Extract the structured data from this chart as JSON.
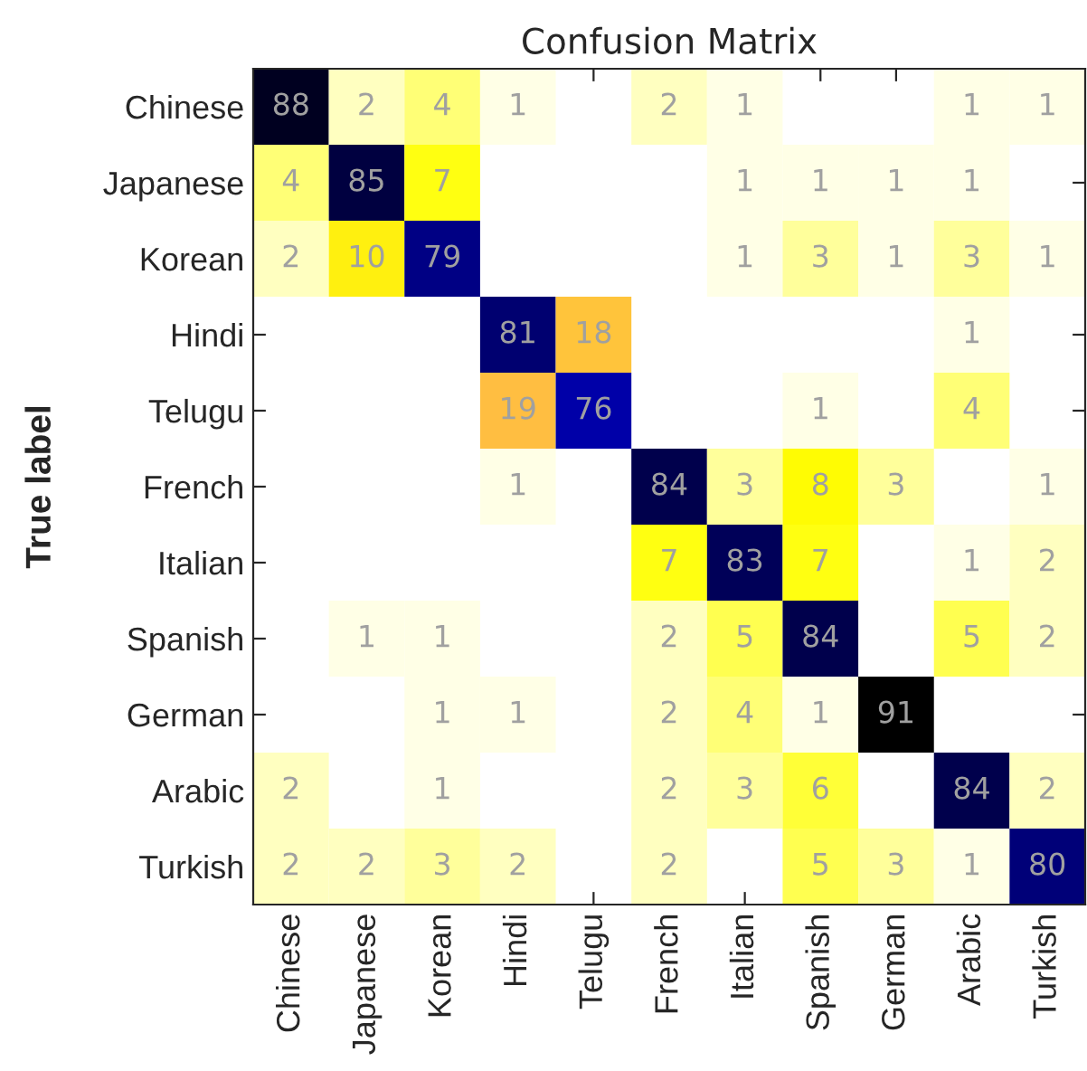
{
  "chart_data": {
    "type": "heatmap",
    "title": "Confusion Matrix",
    "ylabel": "True label",
    "data_labels": true,
    "categories": [
      "Chinese",
      "Japanese",
      "Korean",
      "Hindi",
      "Telugu",
      "French",
      "Italian",
      "Spanish",
      "German",
      "Arabic",
      "Turkish"
    ],
    "y_categories": [
      "Chinese",
      "Japanese",
      "Korean",
      "Hindi",
      "Telugu",
      "French",
      "Italian",
      "Spanish",
      "German",
      "Arabic",
      "Turkish"
    ],
    "cells": [
      [
        88,
        2,
        4,
        1,
        null,
        2,
        1,
        null,
        null,
        1,
        1
      ],
      [
        4,
        85,
        7,
        null,
        null,
        null,
        1,
        1,
        1,
        1,
        null
      ],
      [
        2,
        10,
        79,
        null,
        null,
        null,
        1,
        3,
        1,
        3,
        1
      ],
      [
        null,
        null,
        null,
        81,
        18,
        null,
        null,
        null,
        null,
        1,
        null
      ],
      [
        null,
        null,
        null,
        19,
        76,
        null,
        null,
        1,
        null,
        4,
        null
      ],
      [
        null,
        null,
        null,
        1,
        null,
        84,
        3,
        8,
        3,
        null,
        1
      ],
      [
        null,
        null,
        null,
        null,
        null,
        7,
        83,
        7,
        null,
        1,
        2
      ],
      [
        null,
        1,
        1,
        null,
        null,
        2,
        5,
        84,
        null,
        5,
        2
      ],
      [
        null,
        null,
        1,
        1,
        null,
        2,
        4,
        1,
        91,
        null,
        null
      ],
      [
        2,
        null,
        1,
        null,
        null,
        2,
        3,
        6,
        null,
        84,
        2
      ],
      [
        2,
        2,
        3,
        2,
        null,
        2,
        null,
        5,
        3,
        1,
        80
      ]
    ]
  }
}
